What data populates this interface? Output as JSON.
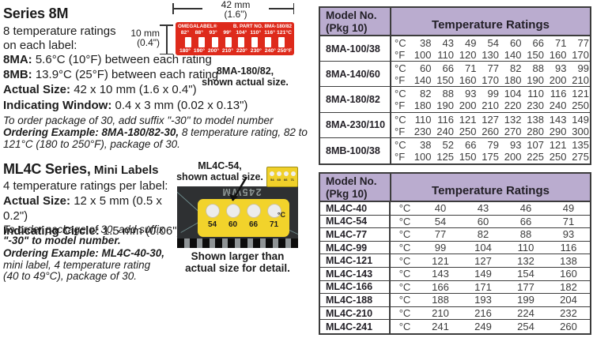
{
  "colors": {
    "table_header_bg": "#baaccf",
    "table_border": "#3c3c3c",
    "label_red": "#de2a1b",
    "label_yellow": "#f2d32b"
  },
  "series8m": {
    "title": "Series 8M",
    "desc1": "8 temperature ratings",
    "desc2": "on each label:",
    "specs": [
      {
        "label": "8MA:",
        "text": " 5.6°C (10°F) between each rating"
      },
      {
        "label": "8MB:",
        "text": " 13.9°C (25°F) between each rating"
      },
      {
        "label": "Actual Size:",
        "text": " 42 x 10 mm (1.6 x 0.4\")"
      },
      {
        "label": "Indicating Window:",
        "text": " 0.4 x 3 mm (0.02 x 0.13\")"
      }
    ],
    "order_note": "To order package of 30, add suffix \"-30\" to model number",
    "example_bold": "Ordering Example: 8MA-180/82-30,",
    "example_rest": " 8 temperature rating, 82 to 121°C (180 to 250°F), package of 30.",
    "dim_w1": "42 mm",
    "dim_w2": "(1.6\")",
    "dim_h1": "10 mm",
    "dim_h2": "(0.4\")",
    "caption1": "8MA-180/82,",
    "caption2": "shown actual size.",
    "label": {
      "brand": "OMEGALABEL®",
      "part": "B. PART NO. 8MA-180/82",
      "top": [
        "82°",
        "88°",
        "93°",
        "99°",
        "104°",
        "110°",
        "116°",
        "121°C"
      ],
      "bottom": [
        "180°",
        "190°",
        "200°",
        "210°",
        "220°",
        "230°",
        "240°",
        "250°F"
      ]
    }
  },
  "ml4c": {
    "title": "ML4C Series,",
    "title_suffix": " Mini Labels",
    "desc": "4 temperature ratings per label:",
    "specs": [
      {
        "label": "Actual Size:",
        "text": " 12 x 5 mm (0.5 x 0.2\")"
      },
      {
        "label": "Indicating Circle:",
        "text": " 1.5 mm (0.06\")"
      }
    ],
    "order_note1": "To order package of 30, add suffix",
    "order_note2": "\"-30\" to model number.",
    "example_bold": "Ordering Example: ML4C-40-30,",
    "example_rest1": "mini label, 4 temperature rating",
    "example_rest2": "(40 to 49°C), package of 30.",
    "photo_caption1": "ML4C-54,",
    "photo_caption2": "shown actual size.",
    "photo_note1": "Shown larger than",
    "photo_note2": "actual size for detail.",
    "chip_marking": "245WM",
    "mini_label": {
      "temps": [
        "54",
        "60",
        "66",
        "71"
      ],
      "unit": "°C"
    }
  },
  "table_8m": {
    "header": {
      "model1": "Model No.",
      "model2": "(Pkg 10)",
      "ratings": "Temperature Ratings"
    },
    "unit_c": "°C",
    "unit_f": "°F",
    "rows": [
      {
        "model": "8MA-100/38",
        "c": [
          "38",
          "43",
          "49",
          "54",
          "60",
          "66",
          "71",
          "77"
        ],
        "f": [
          "100",
          "110",
          "120",
          "130",
          "140",
          "150",
          "160",
          "170"
        ]
      },
      {
        "model": "8MA-140/60",
        "c": [
          "60",
          "66",
          "71",
          "77",
          "82",
          "88",
          "93",
          "99"
        ],
        "f": [
          "140",
          "150",
          "160",
          "170",
          "180",
          "190",
          "200",
          "210"
        ]
      },
      {
        "model": "8MA-180/82",
        "c": [
          "82",
          "88",
          "93",
          "99",
          "104",
          "110",
          "116",
          "121"
        ],
        "f": [
          "180",
          "190",
          "200",
          "210",
          "220",
          "230",
          "240",
          "250"
        ]
      },
      {
        "model": "8MA-230/110",
        "c": [
          "110",
          "116",
          "121",
          "127",
          "132",
          "138",
          "143",
          "149"
        ],
        "f": [
          "230",
          "240",
          "250",
          "260",
          "270",
          "280",
          "290",
          "300"
        ]
      },
      {
        "model": "8MB-100/38",
        "c": [
          "38",
          "52",
          "66",
          "79",
          "93",
          "107",
          "121",
          "135"
        ],
        "f": [
          "100",
          "125",
          "150",
          "175",
          "200",
          "225",
          "250",
          "275"
        ]
      }
    ]
  },
  "table_ml4c": {
    "header": {
      "model1": "Model No.",
      "model2": "(Pkg 10)",
      "ratings": "Temperature Ratings"
    },
    "unit_c": "°C",
    "rows": [
      {
        "model": "ML4C-40",
        "c": [
          "40",
          "43",
          "46",
          "49"
        ]
      },
      {
        "model": "ML4C-54",
        "c": [
          "54",
          "60",
          "66",
          "71"
        ]
      },
      {
        "model": "ML4C-77",
        "c": [
          "77",
          "82",
          "88",
          "93"
        ]
      },
      {
        "model": "ML4C-99",
        "c": [
          "99",
          "104",
          "110",
          "116"
        ]
      },
      {
        "model": "ML4C-121",
        "c": [
          "121",
          "127",
          "132",
          "138"
        ]
      },
      {
        "model": "ML4C-143",
        "c": [
          "143",
          "149",
          "154",
          "160"
        ]
      },
      {
        "model": "ML4C-166",
        "c": [
          "166",
          "171",
          "177",
          "182"
        ]
      },
      {
        "model": "ML4C-188",
        "c": [
          "188",
          "193",
          "199",
          "204"
        ]
      },
      {
        "model": "ML4C-210",
        "c": [
          "210",
          "216",
          "224",
          "232"
        ]
      },
      {
        "model": "ML4C-241",
        "c": [
          "241",
          "249",
          "254",
          "260"
        ]
      }
    ]
  }
}
